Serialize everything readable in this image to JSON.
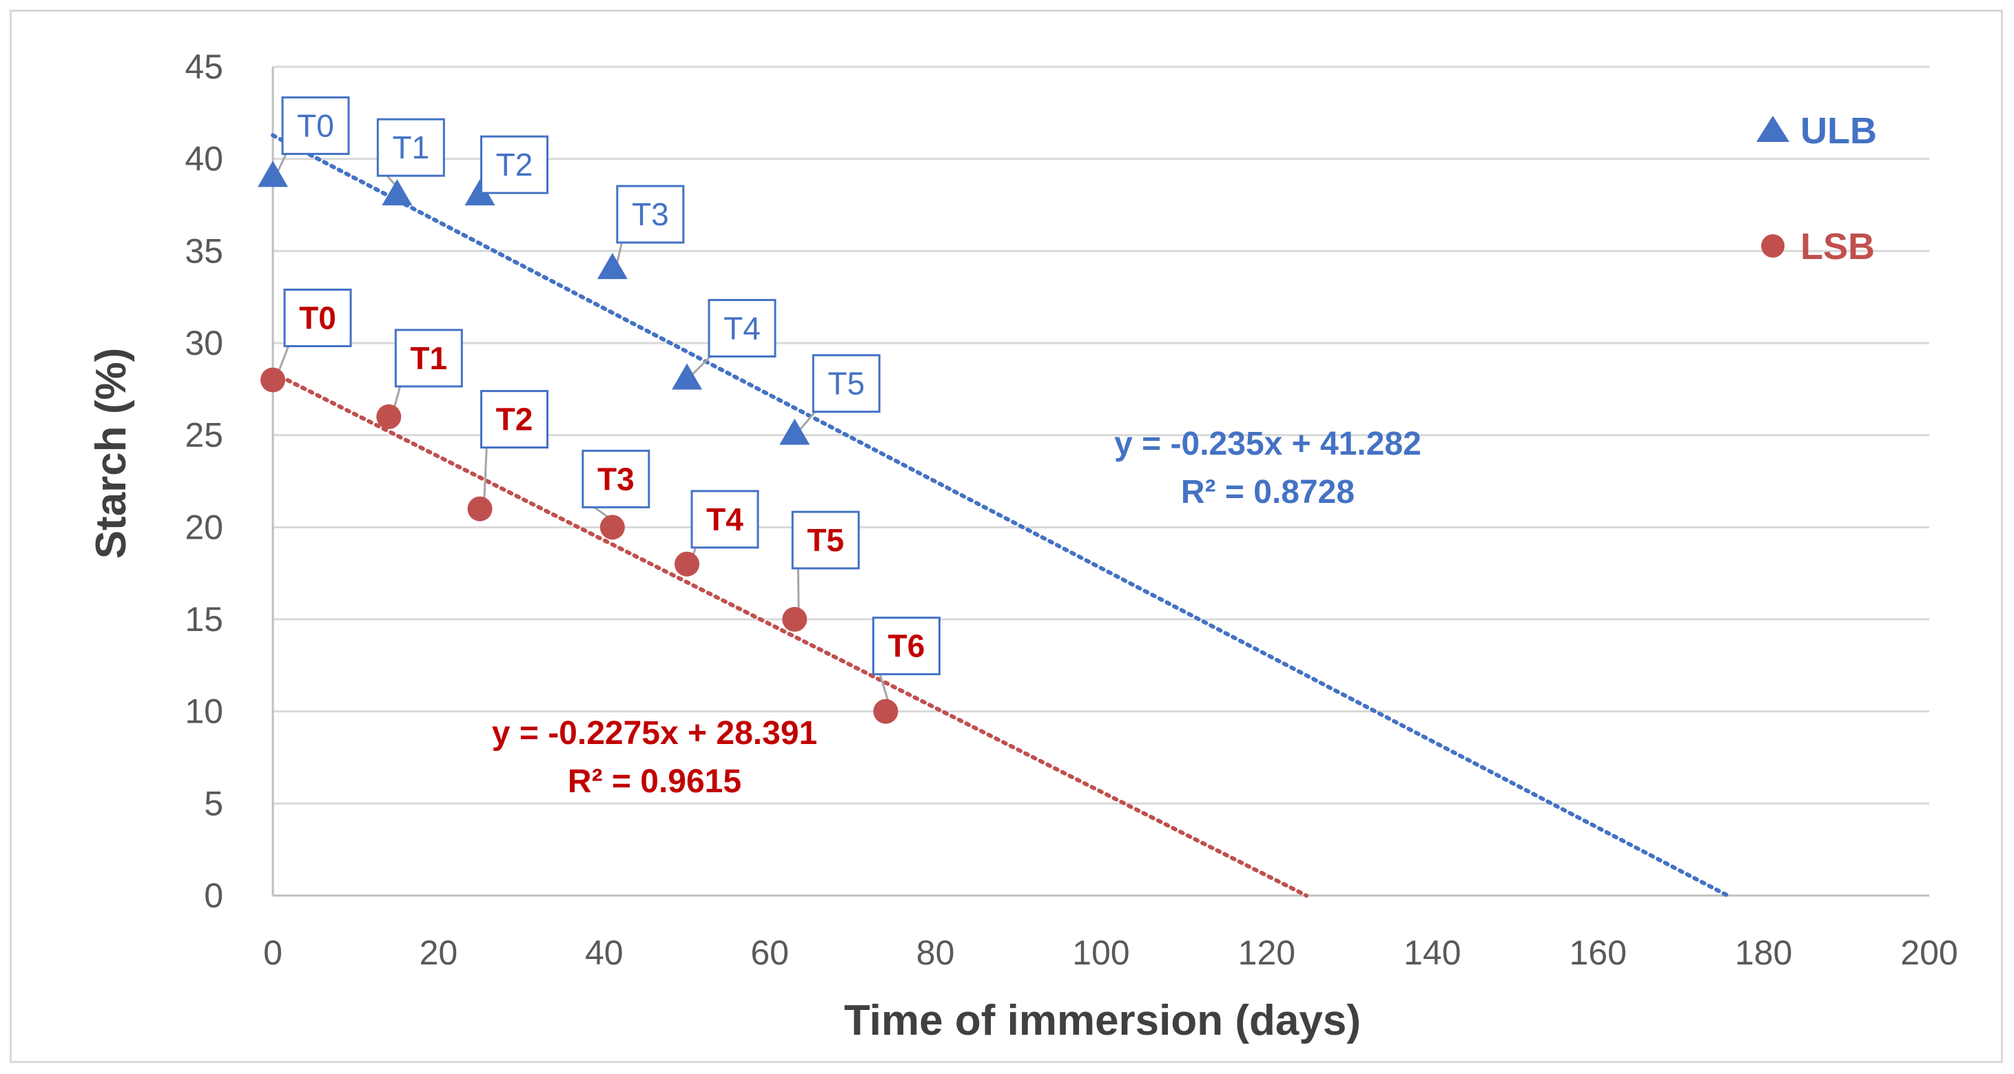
{
  "chart_data": {
    "type": "scatter",
    "xlabel": "Time of immersion (days)",
    "ylabel": "Starch (%)",
    "xlim": [
      0,
      200
    ],
    "ylim": [
      0,
      45
    ],
    "xticks": [
      "0",
      "20",
      "40",
      "60",
      "80",
      "100",
      "120",
      "140",
      "160",
      "180",
      "200"
    ],
    "yticks": [
      "0",
      "5",
      "10",
      "15",
      "20",
      "25",
      "30",
      "35",
      "40",
      "45"
    ],
    "grid": "horizontal",
    "legend_position": "right",
    "series": [
      {
        "name": "ULB",
        "marker": "triangle",
        "color": "#4472c4",
        "points": [
          {
            "label": "T0",
            "x": 0,
            "y": 39
          },
          {
            "label": "T1",
            "x": 15,
            "y": 38
          },
          {
            "label": "T2",
            "x": 25,
            "y": 38
          },
          {
            "label": "T3",
            "x": 41,
            "y": 34
          },
          {
            "label": "T4",
            "x": 50,
            "y": 28
          },
          {
            "label": "T5",
            "x": 63,
            "y": 25
          }
        ],
        "trendline": {
          "slope": -0.235,
          "intercept": 41.282,
          "x_end": 175.7
        },
        "equation": "y = -0.235x + 41.282",
        "r2": "R² = 0.8728"
      },
      {
        "name": "LSB",
        "marker": "circle",
        "color": "#c0504d",
        "label_color": "#c00000",
        "points": [
          {
            "label": "T0",
            "x": 0,
            "y": 28
          },
          {
            "label": "T1",
            "x": 14,
            "y": 26
          },
          {
            "label": "T2",
            "x": 25,
            "y": 21
          },
          {
            "label": "T3",
            "x": 41,
            "y": 20
          },
          {
            "label": "T4",
            "x": 50,
            "y": 18
          },
          {
            "label": "T5",
            "x": 63,
            "y": 15
          },
          {
            "label": "T6",
            "x": 74,
            "y": 10
          }
        ],
        "trendline": {
          "slope": -0.2275,
          "intercept": 28.391,
          "x_end": 124.8
        },
        "equation": "y = -0.2275x + 28.391",
        "r2": "R² = 0.9615"
      }
    ]
  }
}
